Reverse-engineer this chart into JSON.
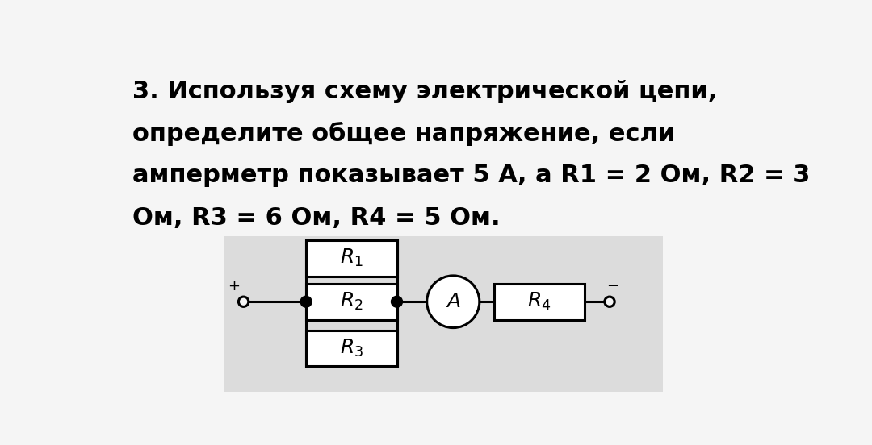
{
  "background_color": "#f5f5f5",
  "diagram_bg": "#d8d8d8",
  "text_color": "#000000",
  "line_color": "#000000",
  "box_color": "#ffffff",
  "title_fontsize": 22,
  "label_fontsize": 18,
  "r1_label": "$R_1$",
  "r2_label": "$R_2$",
  "r3_label": "$R_3$",
  "r4_label": "$R_4$",
  "ammeter_label": "$A$",
  "line1": "3. Используя схему электрической цепи,",
  "line2": "определите общее напряжение, если",
  "line3": "амперметр показывает 5 А, а R1 = 2 Ом, R2 = 3",
  "line4": "Ом, R3 = 6 Ом, R4 = 5 Ом."
}
